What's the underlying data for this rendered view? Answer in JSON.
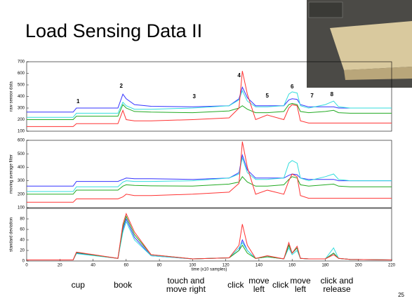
{
  "slide": {
    "title": "Load Sensing Data II",
    "page_number": "25"
  },
  "chart_data": [
    {
      "type": "line",
      "ylabel": "raw sensor data",
      "x": [
        0,
        28,
        30,
        55,
        58,
        60,
        65,
        75,
        100,
        122,
        128,
        130,
        133,
        138,
        145,
        155,
        158,
        160,
        163,
        165,
        170,
        180,
        185,
        188,
        195,
        220
      ],
      "xlim": [
        0,
        220
      ],
      "ylim": [
        100,
        700
      ],
      "yticks": [
        100,
        200,
        300,
        400,
        500,
        600,
        700
      ],
      "series": [
        {
          "color": "#3333ff",
          "values": [
            265,
            265,
            300,
            300,
            420,
            380,
            330,
            315,
            310,
            320,
            380,
            480,
            390,
            320,
            320,
            320,
            370,
            380,
            375,
            330,
            310,
            310,
            310,
            300,
            300,
            300
          ]
        },
        {
          "color": "#33dddd",
          "values": [
            220,
            220,
            255,
            255,
            350,
            320,
            290,
            290,
            300,
            320,
            370,
            450,
            360,
            310,
            310,
            320,
            420,
            440,
            430,
            320,
            300,
            330,
            360,
            310,
            300,
            300
          ]
        },
        {
          "color": "#22aa22",
          "values": [
            200,
            200,
            230,
            230,
            330,
            300,
            270,
            265,
            260,
            275,
            300,
            320,
            290,
            260,
            260,
            270,
            330,
            340,
            330,
            270,
            260,
            270,
            280,
            260,
            255,
            255
          ]
        },
        {
          "color": "#ff3333",
          "values": [
            140,
            140,
            165,
            165,
            280,
            200,
            190,
            190,
            200,
            215,
            300,
            620,
            420,
            200,
            240,
            200,
            300,
            330,
            320,
            190,
            170,
            170,
            170,
            170,
            170,
            170
          ]
        }
      ],
      "annotations": [
        {
          "text": "1",
          "x": 31,
          "y": 355
        },
        {
          "text": "2",
          "x": 57,
          "y": 488
        },
        {
          "text": "3",
          "x": 101,
          "y": 397
        },
        {
          "text": "4",
          "x": 128,
          "y": 579
        },
        {
          "text": "5",
          "x": 145,
          "y": 403
        },
        {
          "text": "6",
          "x": 160,
          "y": 482
        },
        {
          "text": "7",
          "x": 172,
          "y": 403
        },
        {
          "text": "8",
          "x": 184,
          "y": 415
        }
      ]
    },
    {
      "type": "line",
      "ylabel": "moving average filter",
      "x": [
        0,
        28,
        30,
        55,
        58,
        60,
        65,
        75,
        100,
        122,
        128,
        130,
        133,
        138,
        145,
        155,
        158,
        160,
        163,
        165,
        170,
        180,
        185,
        188,
        195,
        220
      ],
      "xlim": [
        0,
        220
      ],
      "ylim": [
        100,
        600
      ],
      "yticks": [
        100,
        200,
        300,
        400,
        500,
        600
      ],
      "series": [
        {
          "color": "#3333ff",
          "values": [
            260,
            260,
            295,
            295,
            310,
            320,
            315,
            315,
            310,
            320,
            360,
            490,
            380,
            320,
            320,
            320,
            340,
            350,
            345,
            320,
            310,
            310,
            310,
            300,
            300,
            300
          ]
        },
        {
          "color": "#33dddd",
          "values": [
            220,
            220,
            255,
            255,
            290,
            300,
            295,
            295,
            300,
            320,
            350,
            470,
            360,
            310,
            310,
            320,
            430,
            450,
            430,
            320,
            300,
            330,
            350,
            310,
            300,
            300
          ]
        },
        {
          "color": "#22aa22",
          "values": [
            200,
            200,
            230,
            230,
            260,
            270,
            265,
            262,
            260,
            275,
            290,
            330,
            290,
            260,
            260,
            270,
            310,
            330,
            320,
            270,
            260,
            270,
            275,
            260,
            255,
            255
          ]
        },
        {
          "color": "#ff3333",
          "values": [
            140,
            140,
            165,
            165,
            180,
            200,
            190,
            190,
            200,
            215,
            280,
            590,
            400,
            200,
            230,
            200,
            300,
            350,
            330,
            190,
            170,
            170,
            170,
            170,
            170,
            170
          ]
        }
      ]
    },
    {
      "type": "line",
      "ylabel": "standard deviation",
      "xlabel": "time (x10 samples)",
      "x": [
        0,
        28,
        30,
        55,
        58,
        60,
        65,
        75,
        100,
        122,
        128,
        130,
        133,
        138,
        145,
        155,
        158,
        160,
        163,
        165,
        170,
        180,
        185,
        188,
        195,
        220
      ],
      "xlim": [
        0,
        220
      ],
      "xticks": [
        0,
        20,
        40,
        60,
        80,
        100,
        120,
        140,
        160,
        180,
        200,
        220
      ],
      "ylim": [
        0,
        100
      ],
      "yticks": [
        0,
        20,
        40,
        60,
        80
      ],
      "series": [
        {
          "color": "#3333ff",
          "values": [
            2,
            2,
            15,
            5,
            60,
            80,
            45,
            10,
            4,
            6,
            20,
            40,
            20,
            5,
            8,
            4,
            30,
            15,
            25,
            5,
            4,
            4,
            15,
            5,
            3,
            2
          ]
        },
        {
          "color": "#33dddd",
          "values": [
            2,
            2,
            14,
            5,
            55,
            75,
            40,
            10,
            4,
            6,
            25,
            35,
            20,
            5,
            8,
            4,
            25,
            12,
            20,
            5,
            4,
            4,
            25,
            5,
            3,
            2
          ]
        },
        {
          "color": "#22aa22",
          "values": [
            2,
            2,
            16,
            5,
            65,
            85,
            50,
            12,
            4,
            6,
            20,
            30,
            15,
            5,
            8,
            4,
            30,
            15,
            25,
            5,
            4,
            4,
            15,
            5,
            3,
            2
          ]
        },
        {
          "color": "#ff3333",
          "values": [
            2,
            2,
            17,
            5,
            70,
            90,
            55,
            12,
            4,
            6,
            30,
            70,
            30,
            5,
            10,
            4,
            35,
            15,
            28,
            5,
            4,
            4,
            12,
            5,
            3,
            2
          ]
        }
      ],
      "event_labels": [
        {
          "text": "cup",
          "x": 31
        },
        {
          "text": "book",
          "x": 58
        },
        {
          "text": "touch and\nmove right",
          "x": 96
        },
        {
          "text": "click",
          "x": 126
        },
        {
          "text": "move\nleft",
          "x": 140
        },
        {
          "text": "click",
          "x": 153
        },
        {
          "text": "move\nleft",
          "x": 165
        },
        {
          "text": "click and\nrelease",
          "x": 187
        }
      ]
    }
  ]
}
